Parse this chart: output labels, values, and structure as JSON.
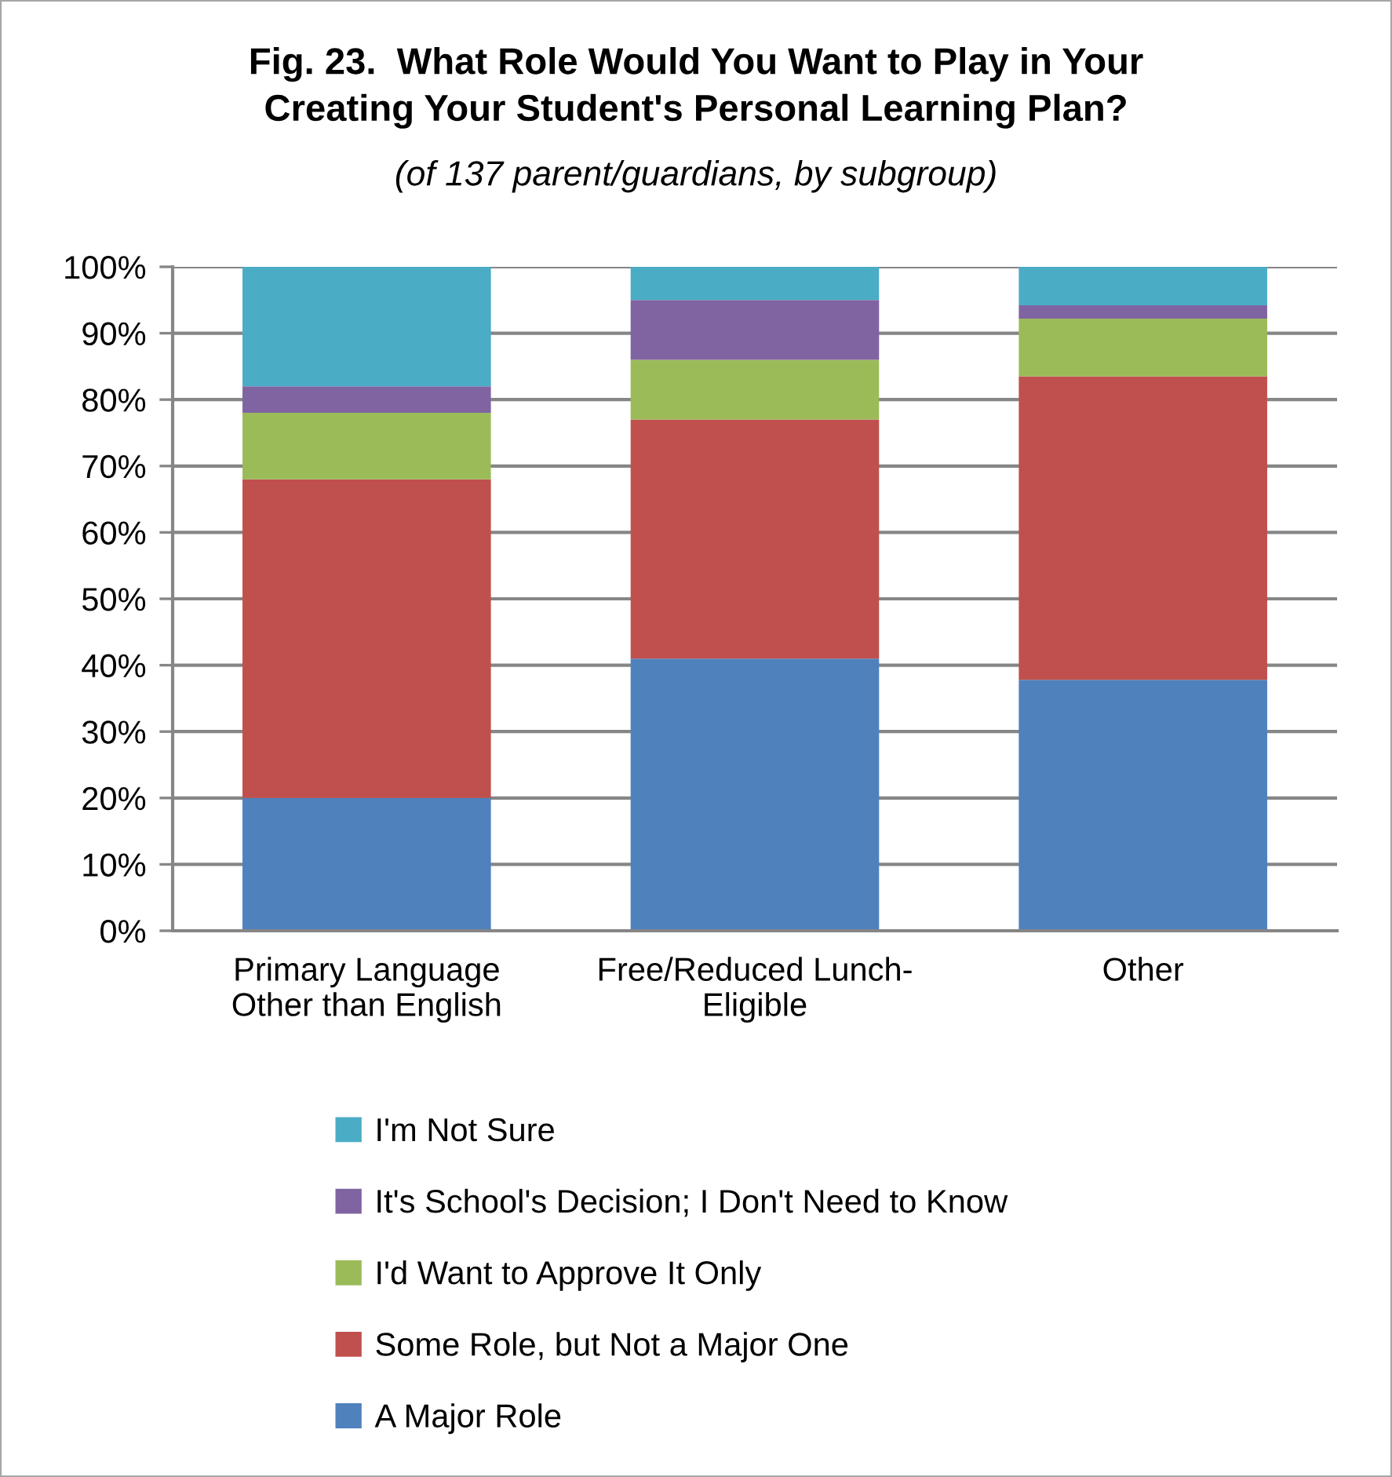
{
  "chart_data": {
    "type": "bar",
    "stacked": true,
    "title": "Fig. 23.  What Role Would You Want to Play in Your\nCreating Your Student's Personal Learning Plan?",
    "subtitle": "(of 137 parent/guardians, by subgroup)",
    "categories": [
      "Primary Language\nOther than English",
      "Free/Reduced Lunch-\nEligible",
      "Other"
    ],
    "series": [
      {
        "name": "A Major Role",
        "color": "#4f81bd",
        "values": [
          20,
          41,
          37.8
        ]
      },
      {
        "name": "Some Role, but Not a Major One",
        "color": "#c0504d",
        "values": [
          48,
          36,
          45.7
        ]
      },
      {
        "name": "I'd Want to Approve It Only",
        "color": "#9bbb59",
        "values": [
          10,
          9,
          8.7
        ]
      },
      {
        "name": "It's School's Decision; I Don't Need to Know",
        "color": "#8064a2",
        "values": [
          4,
          9,
          2.0
        ]
      },
      {
        "name": "I'm Not Sure",
        "color": "#4bacc6",
        "values": [
          18,
          5,
          5.8
        ]
      }
    ],
    "ylim": [
      0,
      100
    ],
    "yticks": [
      {
        "value": 0,
        "label": "0%"
      },
      {
        "value": 10,
        "label": "10%"
      },
      {
        "value": 20,
        "label": "20%"
      },
      {
        "value": 30,
        "label": "30%"
      },
      {
        "value": 40,
        "label": "40%"
      },
      {
        "value": 50,
        "label": "50%"
      },
      {
        "value": 60,
        "label": "60%"
      },
      {
        "value": 70,
        "label": "70%"
      },
      {
        "value": 80,
        "label": "80%"
      },
      {
        "value": 90,
        "label": "90%"
      },
      {
        "value": 100,
        "label": "100%"
      }
    ],
    "grid": "y",
    "legend": "bottom"
  }
}
